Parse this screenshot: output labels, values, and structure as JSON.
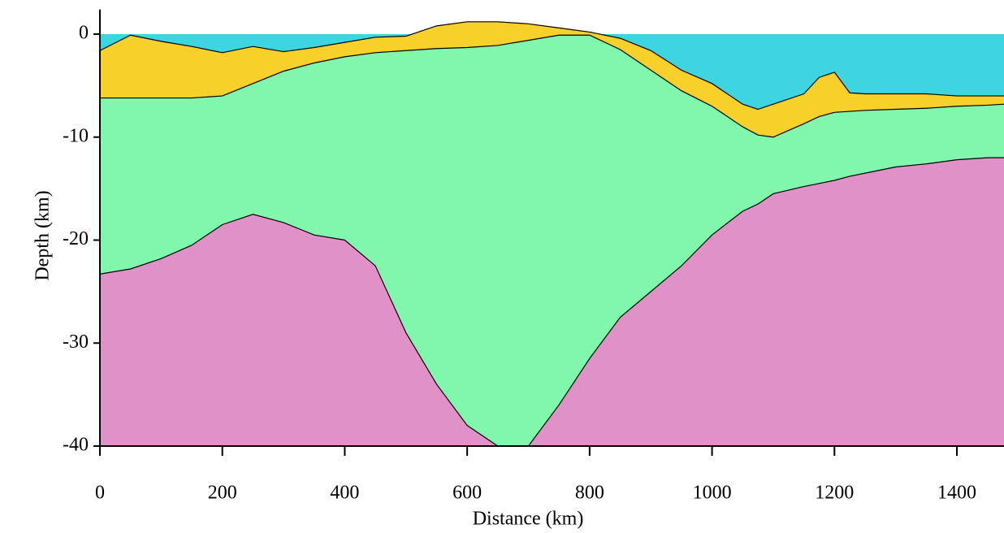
{
  "chart_data": {
    "type": "layered-area",
    "x_label": "Distance (km)",
    "y_label": "Depth (km)",
    "x": [
      0,
      50,
      100,
      150,
      200,
      250,
      300,
      350,
      400,
      450,
      500,
      550,
      600,
      650,
      700,
      750,
      800,
      850,
      900,
      950,
      1000,
      1050,
      1075,
      1100,
      1150,
      1175,
      1200,
      1225,
      1250,
      1300,
      1350,
      1400,
      1450,
      1477
    ],
    "sea_level": 0,
    "water_color": "#3dd6e0",
    "series": [
      {
        "color": "#f7d02a",
        "values": [
          -1.6,
          -0.1,
          -0.7,
          -1.2,
          -1.8,
          -1.2,
          -1.7,
          -1.3,
          -0.8,
          -0.3,
          -0.2,
          0.8,
          1.2,
          1.2,
          1.0,
          0.6,
          0.2,
          -0.4,
          -1.6,
          -3.5,
          -4.8,
          -6.8,
          -7.3,
          -6.8,
          -5.8,
          -4.2,
          -3.7,
          -5.7,
          -5.8,
          -5.8,
          -5.8,
          -6.0,
          -6.0,
          -6.0
        ]
      },
      {
        "color": "#80f7ad",
        "values": [
          -6.2,
          -6.2,
          -6.2,
          -6.2,
          -6.0,
          -4.8,
          -3.6,
          -2.8,
          -2.2,
          -1.8,
          -1.6,
          -1.4,
          -1.3,
          -1.1,
          -0.6,
          -0.1,
          -0.1,
          -1.5,
          -3.5,
          -5.5,
          -7.0,
          -9.0,
          -9.8,
          -10.0,
          -8.7,
          -8.0,
          -7.6,
          -7.5,
          -7.4,
          -7.3,
          -7.2,
          -7.0,
          -6.9,
          -6.8
        ]
      },
      {
        "color": "#e092c8",
        "values": [
          -23.3,
          -22.8,
          -21.8,
          -20.5,
          -18.5,
          -17.5,
          -18.3,
          -19.5,
          -20.0,
          -22.5,
          -29,
          -34,
          -38,
          -40,
          -40,
          -36,
          -31.5,
          -27.5,
          -25,
          -22.5,
          -19.5,
          -17.2,
          -16.5,
          -15.5,
          -14.8,
          -14.5,
          -14.2,
          -13.8,
          -13.5,
          -12.9,
          -12.6,
          -12.2,
          -12.0,
          -12.0
        ]
      }
    ],
    "xlim": [
      0,
      1477
    ],
    "ylim": [
      -40,
      2.4
    ],
    "xticks": [
      0,
      200,
      400,
      600,
      800,
      1000,
      1200,
      1400
    ],
    "yticks": [
      0,
      -10,
      -20,
      -30,
      -40
    ]
  }
}
